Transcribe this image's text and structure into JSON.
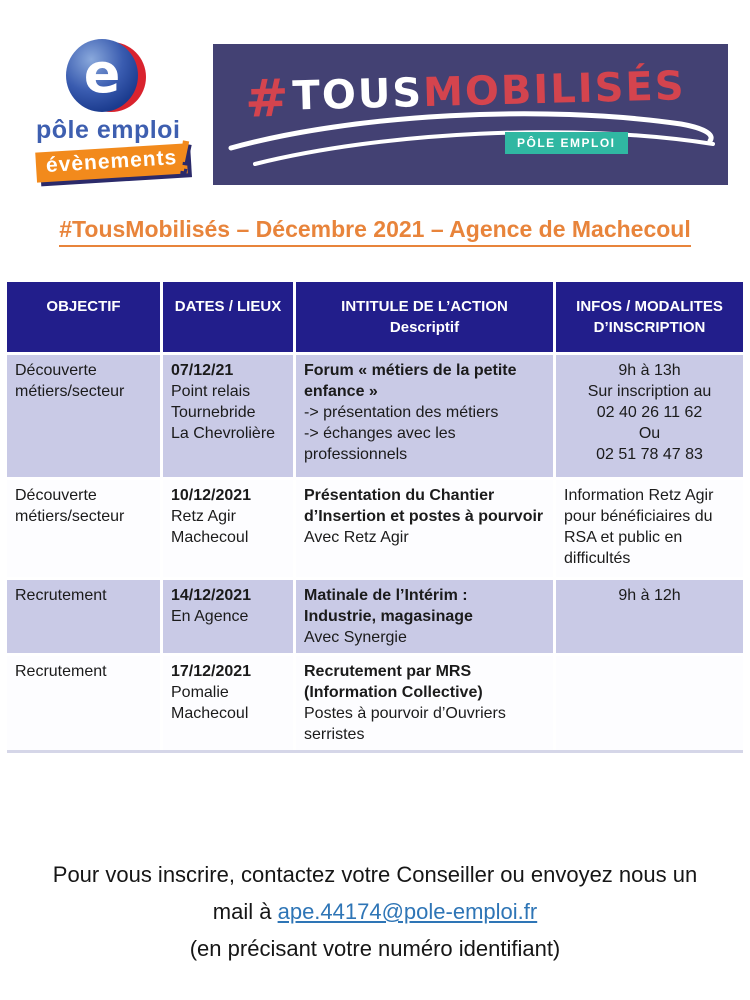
{
  "logo": {
    "e_letter": "e",
    "brand": "pôle emploi",
    "events": "évènements",
    "bang": "!"
  },
  "banner": {
    "hash": "#",
    "word_white": "TOUS",
    "word_red": "MOBILISÉS",
    "badge": "PÔLE EMPLOI"
  },
  "title": "#TousMobilisés – Décembre 2021 – Agence de Machecoul",
  "table": {
    "headers": [
      {
        "lines": [
          "OBJECTIF"
        ]
      },
      {
        "lines": [
          "DATES / LIEUX"
        ]
      },
      {
        "lines": [
          "INTITULE DE L’ACTION",
          "Descriptif"
        ]
      },
      {
        "lines": [
          "INFOS / MODALITES",
          "D’INSCRIPTION"
        ]
      }
    ],
    "rows": [
      {
        "shade": true,
        "objectif": "Découverte métiers/secteur",
        "dates": [
          {
            "t": "07/12/21",
            "b": true
          },
          {
            "t": "Point relais"
          },
          {
            "t": "Tournebride"
          },
          {
            "t": "La Chevrolière"
          }
        ],
        "action": [
          {
            "t": "Forum « métiers de la petite enfance »",
            "b": true
          },
          {
            "t": "-> présentation des métiers"
          },
          {
            "t": "-> échanges avec les professionnels"
          }
        ],
        "infos": [
          {
            "t": "9h à 13h"
          },
          {
            "t": "Sur inscription au"
          },
          {
            "t": "02 40 26 11 62"
          },
          {
            "t": "Ou"
          },
          {
            "t": "02 51 78 47 83"
          }
        ],
        "infos_align": "center"
      },
      {
        "shade": false,
        "objectif": "Découverte métiers/secteur",
        "dates": [
          {
            "t": "10/12/2021",
            "b": true
          },
          {
            "t": "Retz Agir"
          },
          {
            "t": "Machecoul"
          }
        ],
        "action": [
          {
            "t": "Présentation du Chantier d’Insertion et postes à pourvoir",
            "b": true
          },
          {
            "t": "Avec Retz Agir"
          }
        ],
        "infos": [
          {
            "t": "Information Retz Agir pour bénéficiaires du RSA et public en difficultés"
          }
        ],
        "infos_align": "left"
      },
      {
        "shade": true,
        "objectif": "Recrutement",
        "dates": [
          {
            "t": "14/12/2021",
            "b": true
          },
          {
            "t": "En Agence"
          }
        ],
        "action": [
          {
            "t": "Matinale de l’Intérim :",
            "b": true
          },
          {
            "t": "Industrie, magasinage",
            "b": true
          },
          {
            "t": "Avec Synergie"
          }
        ],
        "infos": [
          {
            "t": "9h à 12h"
          }
        ],
        "infos_align": "center"
      },
      {
        "shade": false,
        "objectif": "Recrutement",
        "dates": [
          {
            "t": "17/12/2021",
            "b": true
          },
          {
            "t": "Pomalie"
          },
          {
            "t": "Machecoul"
          }
        ],
        "action": [
          {
            "t": "Recrutement par MRS",
            "b": true
          },
          {
            "t": "(Information Collective)",
            "b": true
          },
          {
            "t": "Postes à pourvoir d’Ouvriers serristes"
          }
        ],
        "infos": [],
        "infos_align": "center"
      }
    ]
  },
  "footer": {
    "line1": "Pour vous inscrire, contactez votre Conseiller ou envoyez nous un",
    "line2_prefix": "mail à ",
    "email": "ape.44174@pole-emploi.fr",
    "line3": "(en précisant votre numéro identifiant)"
  },
  "colors": {
    "header_navy": "#221E8B",
    "row_lavender": "#C9CAE6",
    "banner_navy": "#434173",
    "banner_red": "#D4444E",
    "badge_teal": "#30B7A2",
    "title_orange": "#E8843B",
    "link_blue": "#2E75B6",
    "logo_orange": "#F28A1C",
    "logo_blue": "#3E5FB0",
    "logo_red": "#D9232E"
  }
}
